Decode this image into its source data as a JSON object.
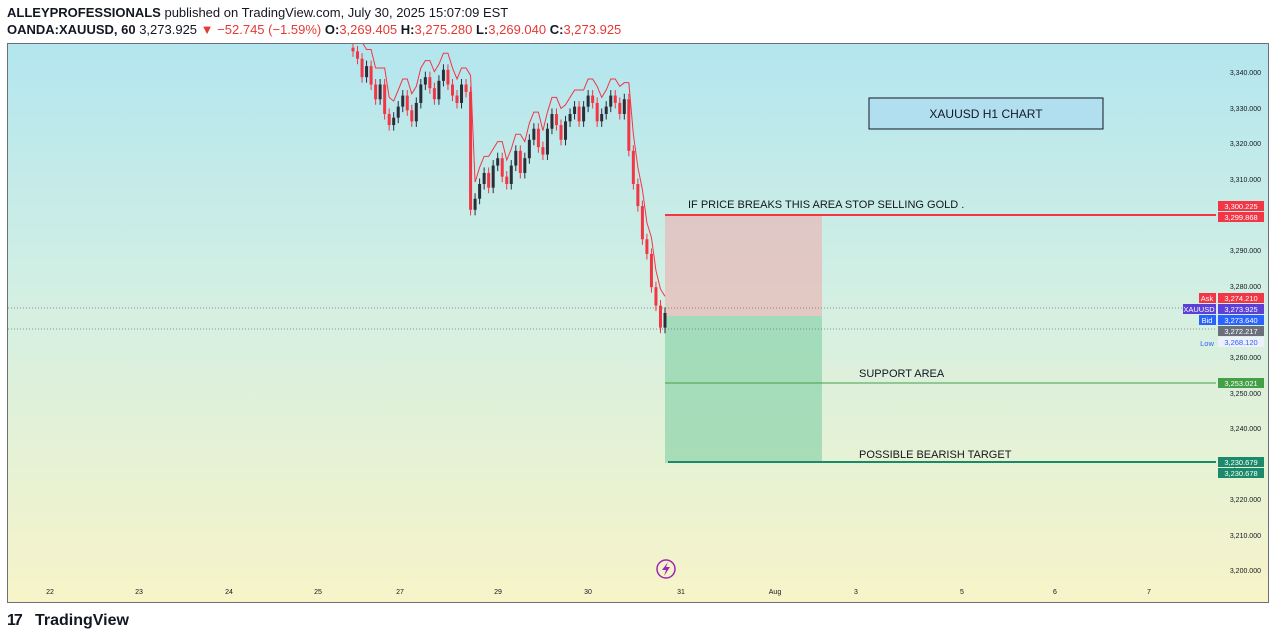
{
  "header": {
    "author": "ALLEYPROFESSIONALS",
    "published_text": " published on TradingView.com, July 30, 2025 15:07:09 EST",
    "symbol": "OANDA:XAUUSD, 60",
    "last": "3,273.925",
    "change": "−52.745 (−1.59%)",
    "o_label": "O:",
    "o_value": "3,269.405",
    "h_label": "H:",
    "h_value": "3,275.280",
    "l_label": "L:",
    "l_value": "3,269.040",
    "c_label": "C:",
    "c_value": "3,273.925"
  },
  "chart": {
    "title_box": "XAUUSD H1 CHART",
    "annotations": {
      "stop": "IF PRICE BREAKS THIS AREA STOP SELLING GOLD .",
      "support": "SUPPORT AREA",
      "target": "POSSIBLE BEARISH TARGET"
    },
    "y_ticks": [
      "3,340.000",
      "3,330.000",
      "3,320.000",
      "3,310.000",
      "3,290.000",
      "3,280.000",
      "3,260.000",
      "3,250.000",
      "3,240.000",
      "3,230.000",
      "3,220.000",
      "3,210.000",
      "3,200.000"
    ],
    "x_ticks": [
      "22",
      "23",
      "24",
      "25",
      "27",
      "29",
      "30",
      "31",
      "Aug",
      "3",
      "5",
      "6",
      "7"
    ],
    "price_tags": {
      "stop_a": "3,300.225",
      "stop_b": "3,299.868",
      "ask_label": "Ask",
      "ask": "3,274.210",
      "symbol_label": "XAUUSD",
      "last": "3,273.925",
      "bid_label": "Bid",
      "bid": "3,273.640",
      "mid": "3,272.217",
      "low_label": "Low",
      "low": "3,268.120",
      "support": "3,253.021",
      "target_a": "3,230.679",
      "target_b": "3,230.678"
    },
    "colors": {
      "bull": "#2a2e39",
      "bear": "#f23645",
      "stop_line": "#f23645",
      "support_line": "#43a047",
      "target_line": "#26a69a",
      "ask": "#f23645",
      "bid": "#2962ff",
      "symbol": "#5b3fd6"
    }
  },
  "chart_data": {
    "type": "candlestick",
    "price_unit": "USD",
    "y_range": [
      3195,
      3347
    ],
    "stop_level": 3300.225,
    "entry_level": 3272.217,
    "support_level": 3253.021,
    "target_level": 3230.679,
    "closes": [
      3345,
      3343,
      3338,
      3341,
      3336,
      3332,
      3336,
      3328,
      3325,
      3327,
      3330,
      3333,
      3329,
      3326,
      3331,
      3336,
      3338,
      3335,
      3332,
      3337,
      3340,
      3336,
      3333,
      3331,
      3336,
      3334,
      3302,
      3305,
      3309,
      3312,
      3308,
      3314,
      3316,
      3311,
      3309,
      3314,
      3318,
      3312,
      3316,
      3321,
      3324,
      3319,
      3317,
      3324,
      3328,
      3325,
      3321,
      3326,
      3328,
      3330,
      3326,
      3330,
      3333,
      3331,
      3326,
      3328,
      3330,
      3333,
      3331,
      3328,
      3332,
      3318,
      3309,
      3303,
      3294,
      3290,
      3281,
      3276,
      3270,
      3274
    ]
  },
  "footer": {
    "brand": "TradingView",
    "logo": "17"
  }
}
